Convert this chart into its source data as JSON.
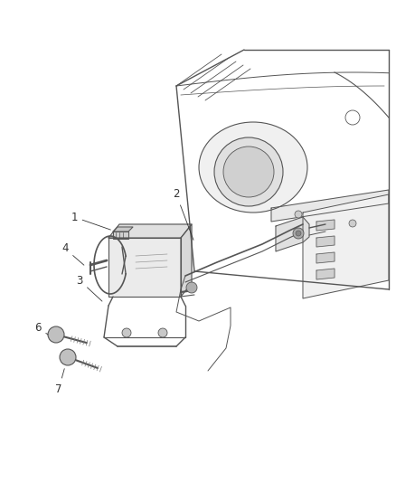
{
  "bg_color": "#ffffff",
  "line_color": "#555555",
  "label_color": "#333333",
  "fig_width": 4.38,
  "fig_height": 5.33,
  "dpi": 100,
  "label_fontsize": 8.5
}
